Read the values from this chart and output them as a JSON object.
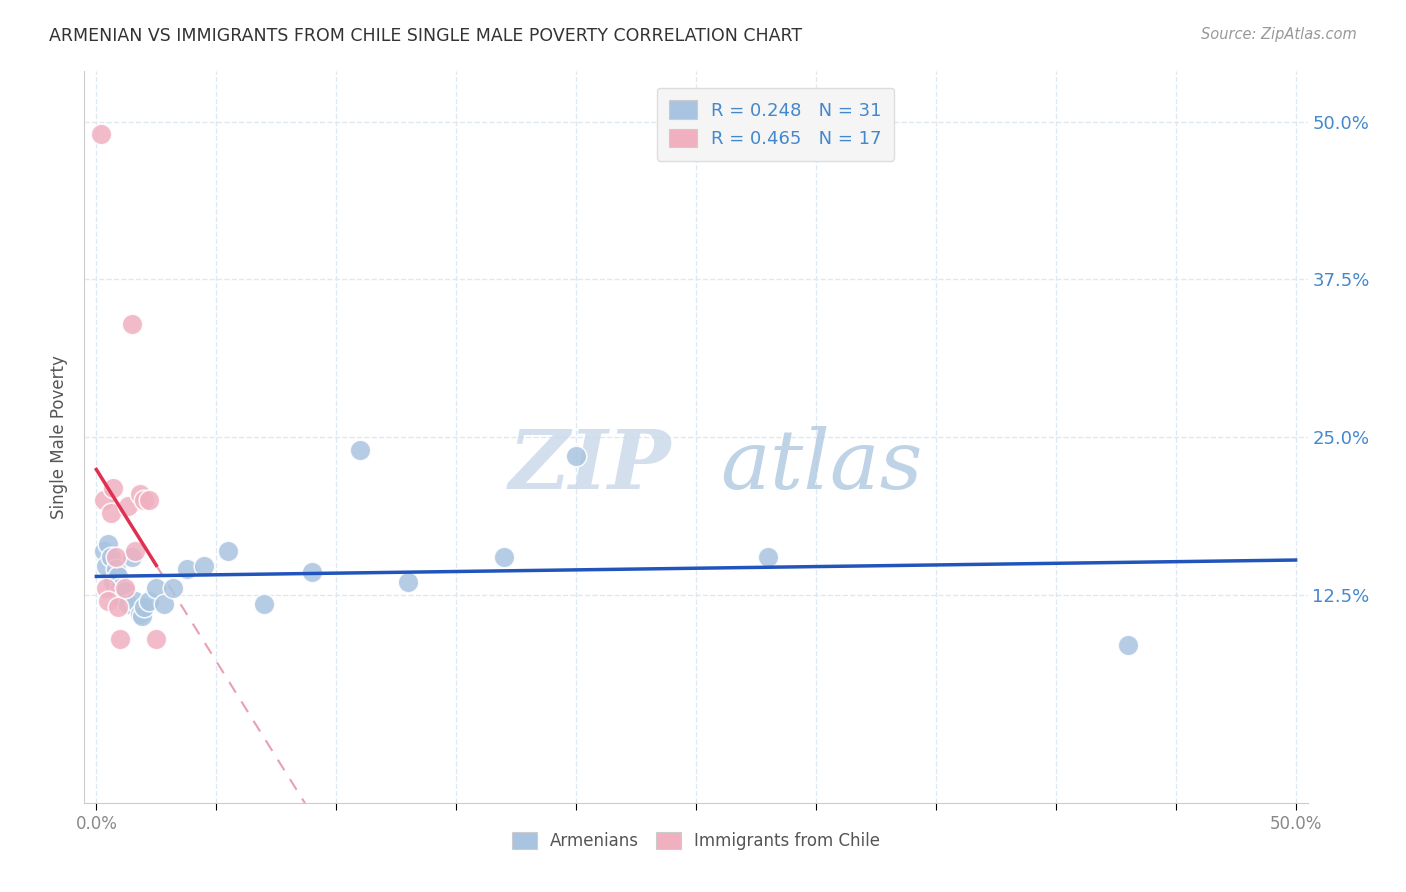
{
  "title": "ARMENIAN VS IMMIGRANTS FROM CHILE SINGLE MALE POVERTY CORRELATION CHART",
  "source": "Source: ZipAtlas.com",
  "ylabel": "Single Male Poverty",
  "ytick_labels": [
    "12.5%",
    "25.0%",
    "37.5%",
    "50.0%"
  ],
  "ytick_values": [
    0.125,
    0.25,
    0.375,
    0.5
  ],
  "xtick_values": [
    0.0,
    0.05,
    0.1,
    0.15,
    0.2,
    0.25,
    0.3,
    0.35,
    0.4,
    0.45,
    0.5
  ],
  "xlim": [
    -0.005,
    0.505
  ],
  "ylim": [
    -0.04,
    0.54
  ],
  "legend_r1": "R = 0.248",
  "legend_n1": "N = 31",
  "legend_r2": "R = 0.465",
  "legend_n2": "N = 17",
  "armenian_color": "#a8c4e0",
  "chile_color": "#f0b0c0",
  "trendline_armenian_color": "#2255bb",
  "trendline_chile_color": "#e03050",
  "trendline_chile_dashed_color": "#e8a0b0",
  "watermark_zip_color": "#d0dce8",
  "watermark_atlas_color": "#b8cce0",
  "background_color": "#ffffff",
  "grid_color": "#dde8f0",
  "armenian_x": [
    0.003,
    0.004,
    0.005,
    0.006,
    0.007,
    0.008,
    0.009,
    0.01,
    0.01,
    0.012,
    0.013,
    0.015,
    0.016,
    0.018,
    0.019,
    0.02,
    0.022,
    0.025,
    0.028,
    0.032,
    0.038,
    0.045,
    0.055,
    0.07,
    0.09,
    0.11,
    0.13,
    0.17,
    0.2,
    0.28,
    0.43
  ],
  "armenian_y": [
    0.16,
    0.148,
    0.165,
    0.155,
    0.135,
    0.145,
    0.14,
    0.13,
    0.125,
    0.128,
    0.118,
    0.155,
    0.12,
    0.11,
    0.108,
    0.115,
    0.12,
    0.13,
    0.118,
    0.13,
    0.145,
    0.148,
    0.16,
    0.118,
    0.143,
    0.24,
    0.135,
    0.155,
    0.235,
    0.155,
    0.085
  ],
  "chile_x": [
    0.002,
    0.003,
    0.004,
    0.005,
    0.006,
    0.007,
    0.008,
    0.009,
    0.01,
    0.012,
    0.013,
    0.015,
    0.016,
    0.018,
    0.02,
    0.022,
    0.025
  ],
  "chile_y": [
    0.49,
    0.2,
    0.13,
    0.12,
    0.19,
    0.21,
    0.155,
    0.115,
    0.09,
    0.13,
    0.195,
    0.34,
    0.16,
    0.205,
    0.2,
    0.2,
    0.09
  ],
  "legend_box_color": "#f5f5f5",
  "legend_edge_color": "#dddddd",
  "bottom_legend_label1": "Armenians",
  "bottom_legend_label2": "Immigrants from Chile"
}
